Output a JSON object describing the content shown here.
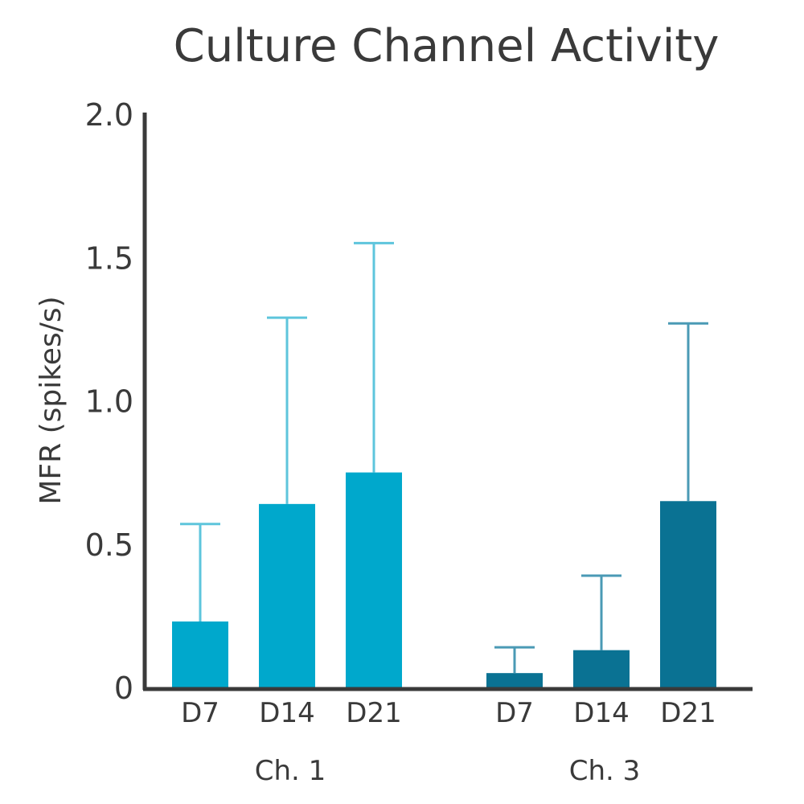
{
  "chart_data": {
    "type": "bar",
    "title": "Culture Channel Activity",
    "ylabel": "MFR (spikes/s)",
    "xlabel": "",
    "ylim": [
      0,
      2.0
    ],
    "yticks": [
      {
        "value": 0,
        "label": "0"
      },
      {
        "value": 0.5,
        "label": "0.5"
      },
      {
        "value": 1.0,
        "label": "1.0"
      },
      {
        "value": 1.5,
        "label": "1.5"
      },
      {
        "value": 2.0,
        "label": "2.0"
      }
    ],
    "grid": false,
    "groups": [
      {
        "label": "Ch. 1",
        "color": "#00a8cc",
        "error_color": "#5ec5dc",
        "bars": [
          {
            "category": "D7",
            "value": 0.23,
            "error": 0.34
          },
          {
            "category": "D14",
            "value": 0.64,
            "error": 0.65
          },
          {
            "category": "D21",
            "value": 0.75,
            "error": 0.8
          }
        ]
      },
      {
        "label": "Ch. 3",
        "color": "#0a7293",
        "error_color": "#4a9ab5",
        "bars": [
          {
            "category": "D7",
            "value": 0.05,
            "error": 0.09
          },
          {
            "category": "D14",
            "value": 0.13,
            "error": 0.26
          },
          {
            "category": "D21",
            "value": 0.65,
            "error": 0.62
          }
        ]
      }
    ]
  }
}
